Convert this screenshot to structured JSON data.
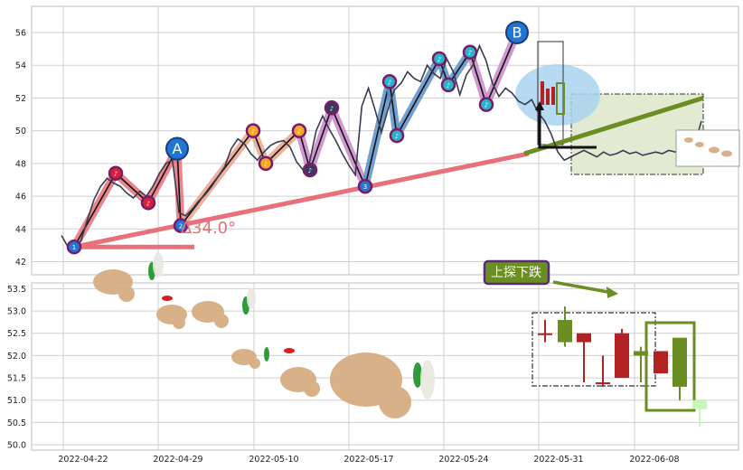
{
  "chart_data": [
    {
      "type": "line",
      "x_ticks": [
        "2022-04-22",
        "2022-04-29",
        "2022-05-10",
        "2022-05-17",
        "2022-05-24",
        "2022-05-31",
        "2022-06-08"
      ],
      "y_ticks": [
        42,
        44,
        46,
        48,
        50,
        52,
        54,
        56
      ],
      "ylim": [
        41.2,
        57.6
      ],
      "grid": true,
      "series": [
        {
          "values": [
            43.6,
            42.9,
            42.8,
            43.3,
            44.6,
            45.8,
            46.6,
            47.1,
            46.8,
            46.6,
            46.2,
            45.9,
            46.3,
            46.0,
            46.6,
            47.4,
            48.0,
            48.2,
            45.0,
            44.8,
            45.2,
            45.7,
            46.1,
            46.6,
            47.2,
            47.8,
            48.9,
            49.5,
            49.2,
            48.6,
            48.2,
            48.7,
            49.1,
            49.3,
            49.4,
            49.0,
            48.1,
            47.6,
            48.1,
            50.0,
            50.9,
            50.1,
            49.4,
            48.6,
            47.9,
            47.3,
            51.5,
            52.6,
            51.3,
            49.9,
            51.3,
            52.5,
            52.9,
            53.6,
            53.2,
            53.0,
            54.0,
            53.5,
            53.2,
            54.4,
            53.6,
            52.2,
            53.4,
            54.0,
            55.2,
            54.3,
            52.9,
            52.1,
            52.6,
            52.3,
            51.8,
            51.6,
            51.9,
            51.1,
            50.6,
            49.8,
            48.7,
            48.2,
            48.4,
            48.6,
            48.8,
            48.6,
            48.4,
            48.7,
            48.5,
            48.6,
            48.8,
            48.6,
            48.7,
            48.5,
            48.6,
            48.7,
            48.6,
            48.8,
            48.7,
            48.9,
            48.6,
            49.2,
            50.6
          ]
        }
      ],
      "wave_points": [
        {
          "label": "1",
          "y": 42.9,
          "color": "#1f77d4"
        },
        {
          "label": "♪",
          "y": 47.4,
          "color": "#d4203c"
        },
        {
          "label": "♪",
          "y": 45.6,
          "color": "#d4203c"
        },
        {
          "label": "A",
          "y": 48.9,
          "color": "#1f77d4"
        },
        {
          "label": "2",
          "y": 44.2,
          "color": "#1f77d4"
        },
        {
          "label": "♪",
          "y": 50.0,
          "color": "#f5a623"
        },
        {
          "label": "♪",
          "y": 48.0,
          "color": "#f5a623"
        },
        {
          "label": "♪",
          "y": 50.0,
          "color": "#f5a623"
        },
        {
          "label": "♪",
          "y": 47.6,
          "color": "#3a3a5c"
        },
        {
          "label": "♪",
          "y": 51.4,
          "color": "#3a3a5c"
        },
        {
          "label": "3",
          "y": 46.6,
          "color": "#1f77d4"
        },
        {
          "label": "♪",
          "y": 53.0,
          "color": "#2ab3c9"
        },
        {
          "label": "♪",
          "y": 49.7,
          "color": "#2ab3c9"
        },
        {
          "label": "♪",
          "y": 54.4,
          "color": "#2ab3c9"
        },
        {
          "label": "♪",
          "y": 52.8,
          "color": "#2ab3c9"
        },
        {
          "label": "♪",
          "y": 54.8,
          "color": "#2ab3c9"
        },
        {
          "label": "♪",
          "y": 51.6,
          "color": "#2ab3c9"
        },
        {
          "label": "B",
          "y": 56.0,
          "color": "#1f77d4"
        }
      ],
      "angle_label": "∆34.0°"
    },
    {
      "type": "bar",
      "y_ticks": [
        50.0,
        50.5,
        51.0,
        51.5,
        52.0,
        52.5,
        53.0,
        53.5
      ],
      "ylim": [
        49.88,
        53.63
      ],
      "grid": true,
      "candles": [
        {
          "open": 52.5,
          "close": 52.5,
          "high": 52.8,
          "low": 52.3,
          "color": "#b22222"
        },
        {
          "open": 52.3,
          "close": 52.8,
          "high": 53.1,
          "low": 52.2,
          "color": "#6b8e23"
        },
        {
          "open": 52.5,
          "close": 52.3,
          "high": 52.5,
          "low": 51.4,
          "color": "#b22222"
        },
        {
          "open": 51.4,
          "close": 51.4,
          "high": 52.0,
          "low": 51.3,
          "color": "#b22222"
        },
        {
          "open": 52.5,
          "close": 51.5,
          "high": 52.6,
          "low": 51.5,
          "color": "#b22222"
        },
        {
          "open": 52.0,
          "close": 52.1,
          "high": 52.2,
          "low": 51.4,
          "color": "#6b8e23"
        },
        {
          "open": 52.1,
          "close": 51.6,
          "high": 52.1,
          "low": 51.6,
          "color": "#b22222"
        },
        {
          "open": 51.3,
          "close": 52.4,
          "high": 52.4,
          "low": 51.0,
          "color": "#6b8e23"
        },
        {
          "open": 51.0,
          "close": 50.8,
          "high": 51.0,
          "low": 50.4,
          "color": "#c6f7b8"
        }
      ],
      "annotation": "上探下跌"
    }
  ],
  "colors": {
    "grid": "#cfcfcf",
    "price_line": "#3b3b4f",
    "trend_red": "#e8707a",
    "trend_green": "#6b8e23",
    "box_fill": "#e2ead2",
    "ellipse": "#a9d4ef",
    "annotation_bg": "#6b8e23",
    "annotation_border": "#5b2a7a"
  }
}
